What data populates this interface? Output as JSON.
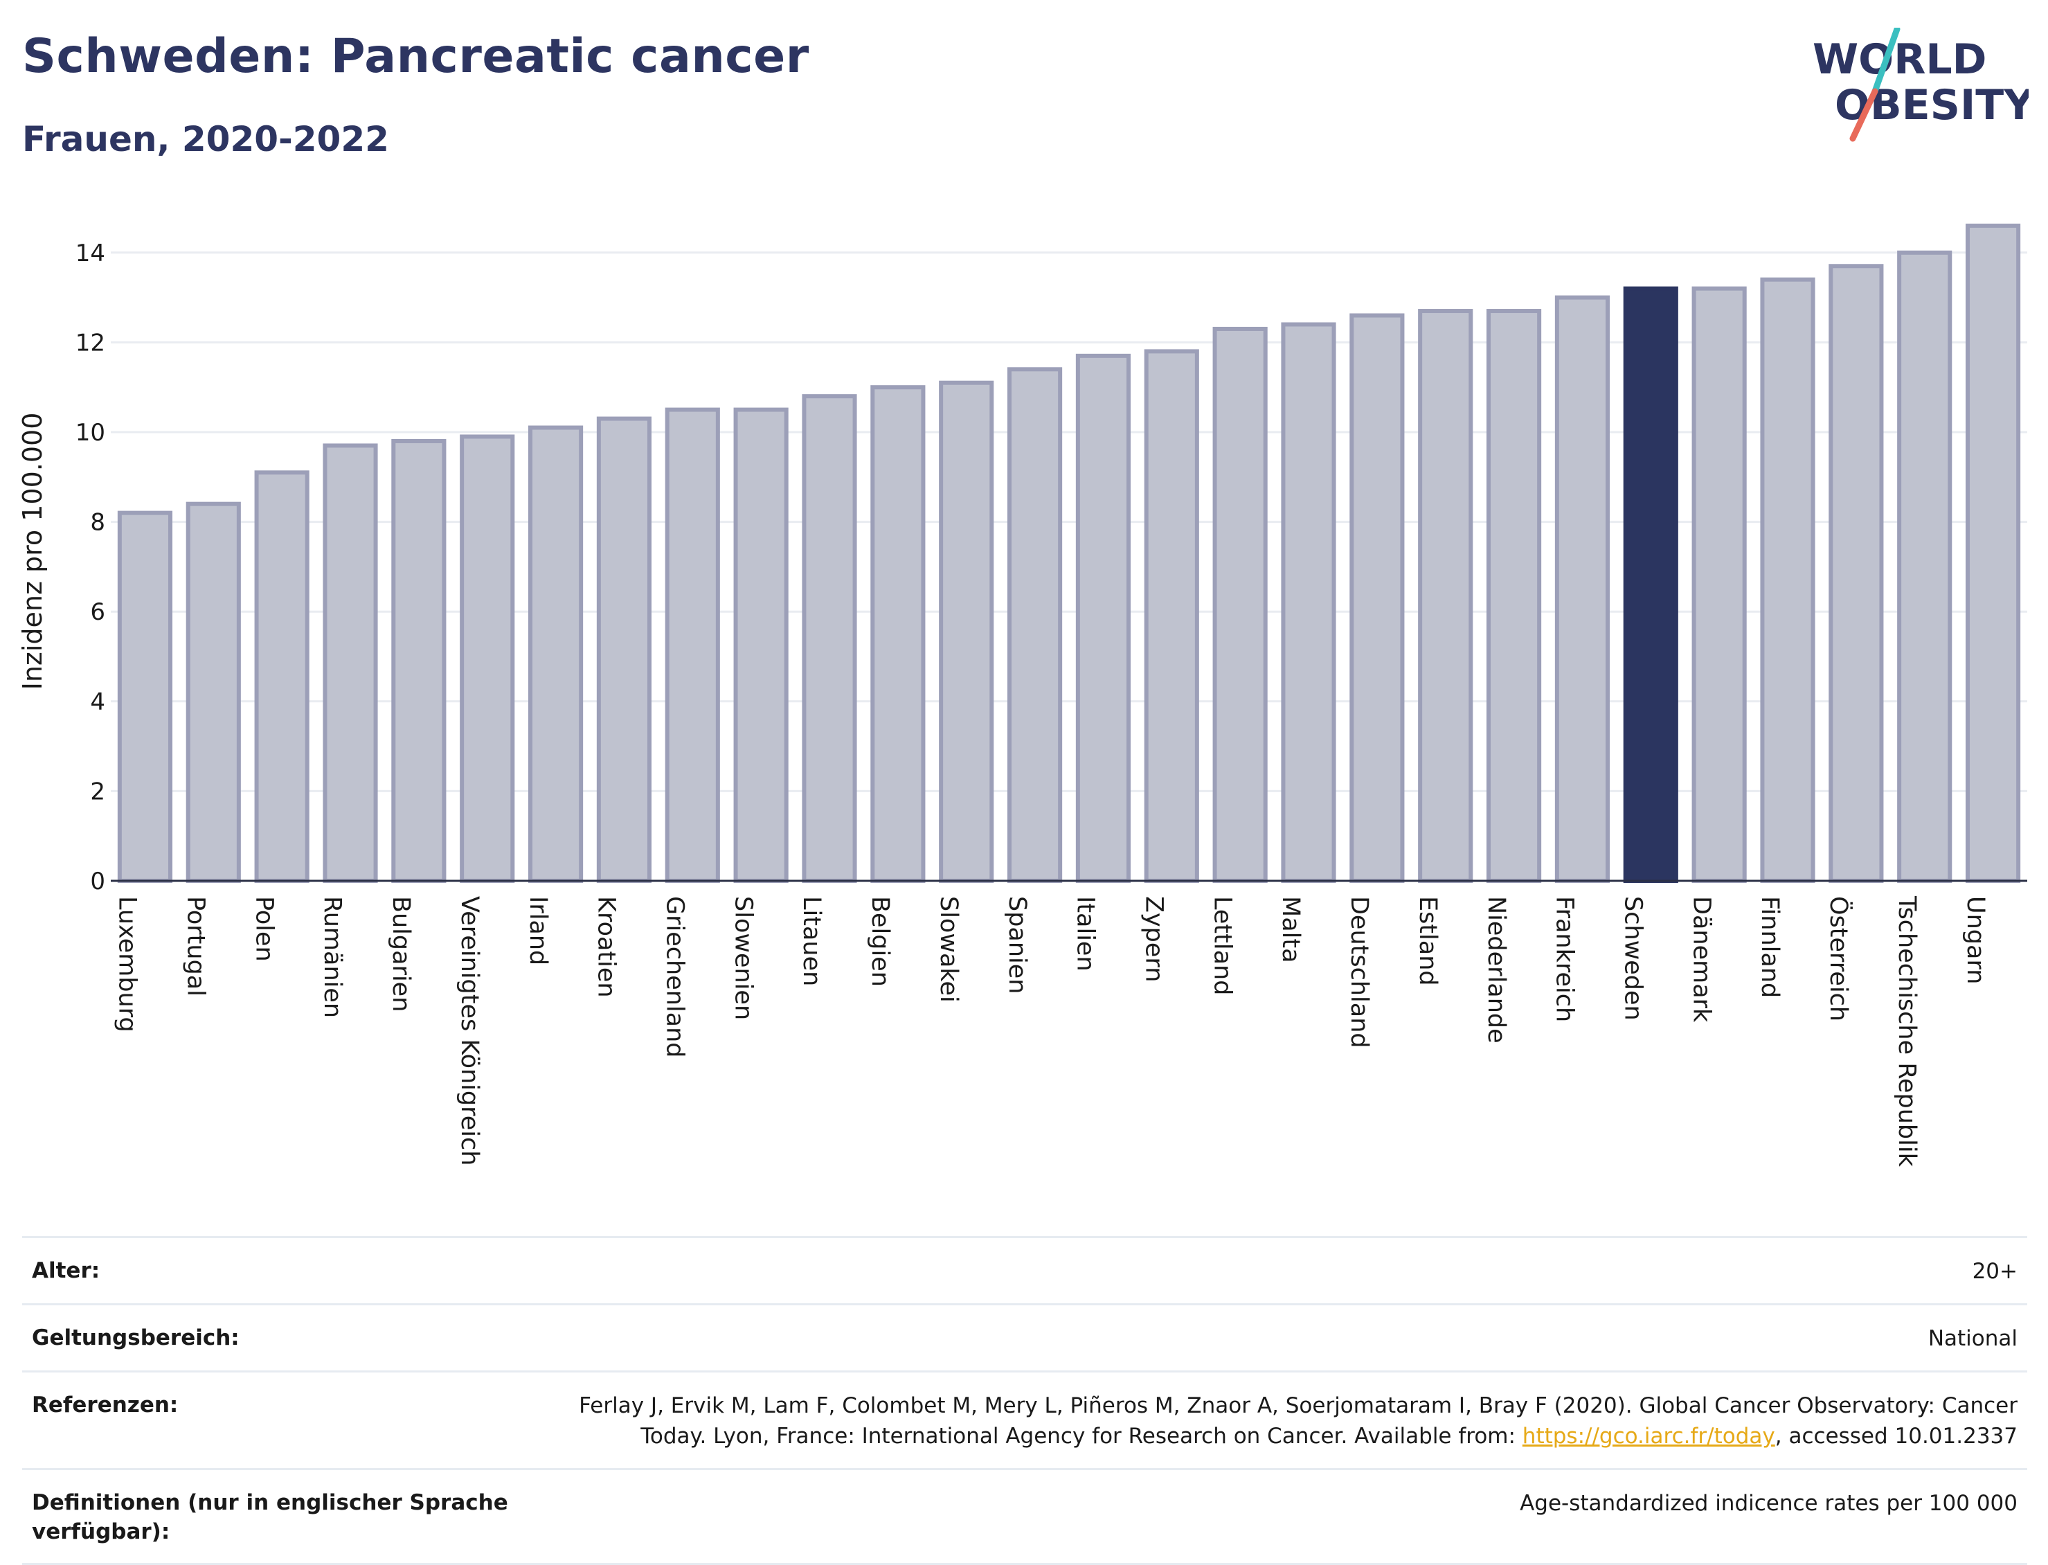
{
  "header": {
    "title": "Schweden: Pancreatic cancer",
    "subtitle": "Frauen, 2020-2022"
  },
  "logo": {
    "line1": "WORLD",
    "line2": "OBESITY"
  },
  "colors": {
    "highlight": "#2b3560",
    "bar_fill": "#bfc2cf",
    "bar_stroke": "#9c9fb8",
    "grid": "#e9ecf1",
    "logo_text": "#2d3561",
    "logo_teal": "#3bbfc0",
    "logo_coral": "#e86a5a",
    "link": "#e6a917"
  },
  "chart_data": {
    "type": "bar",
    "ylabel": "Inzidenz pro 100.000",
    "ylim": [
      0,
      15
    ],
    "yticks": [
      0,
      2,
      4,
      6,
      8,
      10,
      12,
      14
    ],
    "grid": true,
    "highlight": "Schweden",
    "categories": [
      "Luxemburg",
      "Portugal",
      "Polen",
      "Rumänien",
      "Bulgarien",
      "Vereinigtes Königreich",
      "Irland",
      "Kroatien",
      "Griechenland",
      "Slowenien",
      "Litauen",
      "Belgien",
      "Slowakei",
      "Spanien",
      "Italien",
      "Zypern",
      "Lettland",
      "Malta",
      "Deutschland",
      "Estland",
      "Niederlande",
      "Frankreich",
      "Schweden",
      "Dänemark",
      "Finnland",
      "Österreich",
      "Tschechische Republik",
      "Ungarn"
    ],
    "values": [
      8.2,
      8.4,
      9.1,
      9.7,
      9.8,
      9.9,
      10.1,
      10.3,
      10.5,
      10.5,
      10.8,
      11.0,
      11.1,
      11.4,
      11.7,
      11.8,
      12.3,
      12.4,
      12.6,
      12.7,
      12.7,
      13.0,
      13.2,
      13.2,
      13.4,
      13.7,
      14.0,
      14.6
    ]
  },
  "meta": {
    "age_label": "Alter:",
    "age_value": "20+",
    "scope_label": "Geltungsbereich:",
    "scope_value": "National",
    "ref_label": "Referenzen:",
    "ref_text_1": "Ferlay J, Ervik M, Lam F, Colombet M, Mery L, Piñeros M, Znaor A, Soerjomataram I, Bray F (2020). Global Cancer Observatory: Cancer",
    "ref_text_2": "Today. Lyon, France: International Agency for Research on Cancer. Available from: ",
    "ref_link": "https://gco.iarc.fr/today",
    "ref_text_3": ", accessed 10.01.2337",
    "def_label": "Definitionen (nur in englischer Sprache verfügbar):",
    "def_value": "Age-standardized indicence rates per 100 000"
  }
}
